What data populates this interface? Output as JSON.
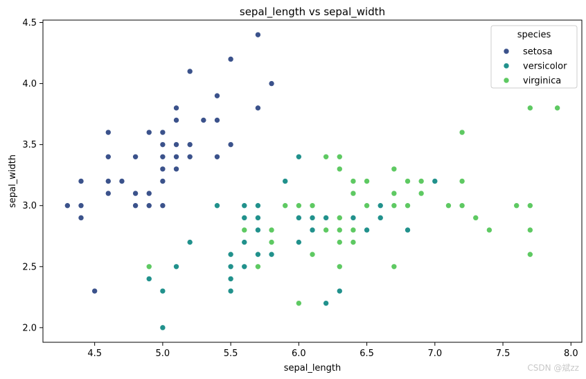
{
  "chart_data": {
    "type": "scatter",
    "title": "sepal_length vs sepal_width",
    "xlabel": "sepal_length",
    "ylabel": "sepal_width",
    "xlim": [
      4.12,
      8.08
    ],
    "ylim": [
      1.88,
      4.52
    ],
    "xticks": [
      4.5,
      5.0,
      5.5,
      6.0,
      6.5,
      7.0,
      7.5,
      8.0
    ],
    "xtick_labels": [
      "4.5",
      "5.0",
      "5.5",
      "6.0",
      "6.5",
      "7.0",
      "7.5",
      "8.0"
    ],
    "yticks": [
      2.0,
      2.5,
      3.0,
      3.5,
      4.0,
      4.5
    ],
    "ytick_labels": [
      "2.0",
      "2.5",
      "3.0",
      "3.5",
      "4.0",
      "4.5"
    ],
    "grid": false,
    "legend": {
      "title": "species",
      "placement": "top-right"
    },
    "series": [
      {
        "name": "setosa",
        "color": "#3b528b",
        "points": [
          [
            4.3,
            3.0
          ],
          [
            4.4,
            2.9
          ],
          [
            4.4,
            3.0
          ],
          [
            4.4,
            3.2
          ],
          [
            4.5,
            2.3
          ],
          [
            4.6,
            3.1
          ],
          [
            4.6,
            3.2
          ],
          [
            4.6,
            3.4
          ],
          [
            4.6,
            3.6
          ],
          [
            4.7,
            3.2
          ],
          [
            4.8,
            3.0
          ],
          [
            4.8,
            3.1
          ],
          [
            4.8,
            3.4
          ],
          [
            4.9,
            3.0
          ],
          [
            4.9,
            3.1
          ],
          [
            4.9,
            3.6
          ],
          [
            5.0,
            3.0
          ],
          [
            5.0,
            3.2
          ],
          [
            5.0,
            3.3
          ],
          [
            5.0,
            3.4
          ],
          [
            5.0,
            3.5
          ],
          [
            5.0,
            3.6
          ],
          [
            5.1,
            3.3
          ],
          [
            5.1,
            3.4
          ],
          [
            5.1,
            3.5
          ],
          [
            5.1,
            3.7
          ],
          [
            5.1,
            3.8
          ],
          [
            5.2,
            3.4
          ],
          [
            5.2,
            3.5
          ],
          [
            5.2,
            4.1
          ],
          [
            5.3,
            3.7
          ],
          [
            5.4,
            3.4
          ],
          [
            5.4,
            3.7
          ],
          [
            5.4,
            3.9
          ],
          [
            5.5,
            3.5
          ],
          [
            5.5,
            4.2
          ],
          [
            5.7,
            3.8
          ],
          [
            5.7,
            4.4
          ],
          [
            5.8,
            4.0
          ]
        ]
      },
      {
        "name": "versicolor",
        "color": "#21918c",
        "points": [
          [
            4.9,
            2.4
          ],
          [
            5.0,
            2.0
          ],
          [
            5.0,
            2.3
          ],
          [
            5.1,
            2.5
          ],
          [
            5.2,
            2.7
          ],
          [
            5.4,
            3.0
          ],
          [
            5.5,
            2.3
          ],
          [
            5.5,
            2.4
          ],
          [
            5.5,
            2.5
          ],
          [
            5.5,
            2.6
          ],
          [
            5.6,
            2.5
          ],
          [
            5.6,
            2.7
          ],
          [
            5.6,
            2.9
          ],
          [
            5.6,
            3.0
          ],
          [
            5.7,
            2.6
          ],
          [
            5.7,
            2.8
          ],
          [
            5.7,
            2.9
          ],
          [
            5.7,
            3.0
          ],
          [
            5.8,
            2.6
          ],
          [
            5.8,
            2.7
          ],
          [
            5.9,
            3.0
          ],
          [
            5.9,
            3.2
          ],
          [
            6.0,
            2.2
          ],
          [
            6.0,
            2.7
          ],
          [
            6.0,
            2.9
          ],
          [
            6.0,
            3.4
          ],
          [
            6.1,
            2.8
          ],
          [
            6.1,
            2.9
          ],
          [
            6.1,
            3.0
          ],
          [
            6.2,
            2.2
          ],
          [
            6.2,
            2.9
          ],
          [
            6.3,
            2.3
          ],
          [
            6.3,
            2.5
          ],
          [
            6.3,
            3.3
          ],
          [
            6.4,
            2.9
          ],
          [
            6.4,
            3.2
          ],
          [
            6.5,
            2.8
          ],
          [
            6.6,
            2.9
          ],
          [
            6.6,
            3.0
          ],
          [
            6.7,
            3.0
          ],
          [
            6.7,
            3.1
          ],
          [
            6.8,
            2.8
          ],
          [
            6.9,
            3.1
          ],
          [
            7.0,
            3.2
          ]
        ]
      },
      {
        "name": "virginica",
        "color": "#5ec962",
        "points": [
          [
            4.9,
            2.5
          ],
          [
            5.6,
            2.8
          ],
          [
            5.7,
            2.5
          ],
          [
            5.8,
            2.7
          ],
          [
            5.8,
            2.8
          ],
          [
            5.9,
            3.0
          ],
          [
            6.0,
            2.2
          ],
          [
            6.0,
            3.0
          ],
          [
            6.1,
            2.6
          ],
          [
            6.1,
            3.0
          ],
          [
            6.2,
            2.8
          ],
          [
            6.2,
            3.4
          ],
          [
            6.3,
            2.5
          ],
          [
            6.3,
            2.7
          ],
          [
            6.3,
            2.8
          ],
          [
            6.3,
            2.9
          ],
          [
            6.3,
            3.3
          ],
          [
            6.3,
            3.4
          ],
          [
            6.4,
            2.7
          ],
          [
            6.4,
            2.8
          ],
          [
            6.4,
            3.1
          ],
          [
            6.4,
            3.2
          ],
          [
            6.5,
            3.0
          ],
          [
            6.5,
            3.2
          ],
          [
            6.7,
            2.5
          ],
          [
            6.7,
            3.0
          ],
          [
            6.7,
            3.1
          ],
          [
            6.7,
            3.3
          ],
          [
            6.8,
            3.0
          ],
          [
            6.8,
            3.2
          ],
          [
            6.9,
            3.1
          ],
          [
            6.9,
            3.2
          ],
          [
            7.1,
            3.0
          ],
          [
            7.2,
            3.0
          ],
          [
            7.2,
            3.2
          ],
          [
            7.2,
            3.6
          ],
          [
            7.3,
            2.9
          ],
          [
            7.4,
            2.8
          ],
          [
            7.6,
            3.0
          ],
          [
            7.7,
            2.6
          ],
          [
            7.7,
            2.8
          ],
          [
            7.7,
            3.0
          ],
          [
            7.7,
            3.8
          ],
          [
            7.9,
            3.8
          ]
        ]
      }
    ]
  },
  "watermark": "CSDN @斌zz"
}
